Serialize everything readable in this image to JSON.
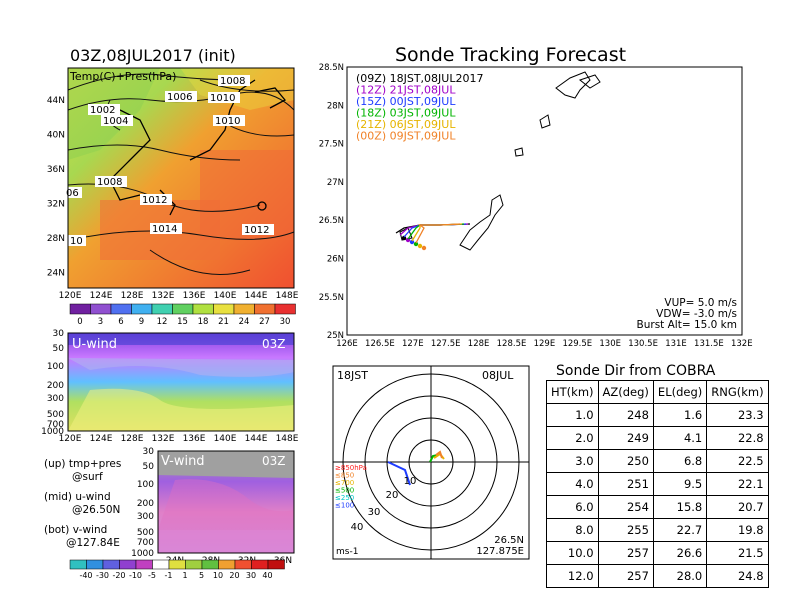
{
  "init_title": "03Z,08JUL2017 (init)",
  "main_title": "Sonde Tracking Forecast",
  "left_top_panel": {
    "label": "Temp(C)+Pres(hPa)",
    "isobar_labels": [
      "1008",
      "1006",
      "1010",
      "1002",
      "1004",
      "1010",
      "1008",
      "06",
      "1012",
      "1014",
      "1012",
      "10"
    ],
    "y_ticks": [
      "44N",
      "40N",
      "36N",
      "32N",
      "28N",
      "24N"
    ],
    "x_ticks": [
      "120E",
      "124E",
      "128E",
      "132E",
      "136E",
      "140E",
      "144E",
      "148E"
    ],
    "colorbar_ticks": [
      "0",
      "3",
      "6",
      "9",
      "12",
      "15",
      "18",
      "21",
      "24",
      "27",
      "30"
    ]
  },
  "uwind_panel": {
    "label": "U-wind",
    "time": "03Z",
    "y_ticks": [
      "30",
      "50",
      "100",
      "200",
      "300",
      "500",
      "700",
      "1000"
    ],
    "x_ticks": [
      "120E",
      "124E",
      "128E",
      "132E",
      "136E",
      "140E",
      "144E",
      "148E"
    ]
  },
  "vwind_panel": {
    "label": "V-wind",
    "time": "03Z",
    "y_ticks": [
      "30",
      "50",
      "100",
      "200",
      "300",
      "500",
      "700",
      "1000"
    ],
    "x_ticks": [
      "24N",
      "28N",
      "32N",
      "36N"
    ]
  },
  "wind_colorbar_ticks": [
    "-40",
    "-30",
    "-20",
    "-10",
    "-5",
    "-1",
    "1",
    "5",
    "10",
    "20",
    "30",
    "40"
  ],
  "notes": [
    "(up) tmp+pres",
    "@surf",
    "(mid) u-wind",
    "@26.50N",
    "(bot) v-wind",
    "@127.84E"
  ],
  "track_map": {
    "y_ticks": [
      "28.5N",
      "28N",
      "27.5N",
      "27N",
      "26.5N",
      "26N",
      "25.5N",
      "25N"
    ],
    "x_ticks": [
      "126E",
      "126.5E",
      "127E",
      "127.5E",
      "128E",
      "128.5E",
      "129E",
      "129.5E",
      "130E",
      "130.5E",
      "131E",
      "131.5E",
      "132E"
    ],
    "legend": [
      {
        "label": "(09Z)  18JST,08JUL2017",
        "color": "#000000"
      },
      {
        "label": "(12Z)  21JST,08JUL",
        "color": "#a000c8"
      },
      {
        "label": "(15Z)  00JST,09JUL",
        "color": "#1e3cff"
      },
      {
        "label": "(18Z)  03JST,09JUL",
        "color": "#00b400"
      },
      {
        "label": "(21Z)  06JST,09JUL",
        "color": "#e6b400"
      },
      {
        "label": "(00Z)  09JST,09JUL",
        "color": "#f08228"
      }
    ],
    "params": [
      "VUP=  5.0  m/s",
      "VDW= -3.0  m/s",
      "Burst Alt=  15.0  km"
    ]
  },
  "hodograph": {
    "time_left": "18JST",
    "date_right": "08JUL",
    "level_labels": [
      {
        "text": "≥850hPa",
        "color": "#ff2020"
      },
      {
        "text": "≤850",
        "color": "#f08228"
      },
      {
        "text": "≤700",
        "color": "#e6b400"
      },
      {
        "text": "≤500",
        "color": "#00b400"
      },
      {
        "text": "≤250",
        "color": "#00c8c8"
      },
      {
        "text": "≤100",
        "color": "#1e3cff"
      }
    ],
    "ring_labels": [
      "10",
      "20",
      "30",
      "40"
    ],
    "unit": "ms-1",
    "location": [
      "26.5N",
      "127.875E"
    ]
  },
  "sonde_table": {
    "title": "Sonde Dir from COBRA",
    "headers": [
      "HT(km)",
      "AZ(deg)",
      "EL(deg)",
      "RNG(km)"
    ],
    "rows": [
      [
        "1.0",
        "248",
        "1.6",
        "23.3"
      ],
      [
        "2.0",
        "249",
        "4.1",
        "22.8"
      ],
      [
        "3.0",
        "250",
        "6.8",
        "22.5"
      ],
      [
        "4.0",
        "251",
        "9.5",
        "22.1"
      ],
      [
        "6.0",
        "254",
        "15.8",
        "20.7"
      ],
      [
        "8.0",
        "255",
        "22.7",
        "19.8"
      ],
      [
        "10.0",
        "257",
        "26.6",
        "21.5"
      ],
      [
        "12.0",
        "257",
        "28.0",
        "24.8"
      ]
    ]
  }
}
